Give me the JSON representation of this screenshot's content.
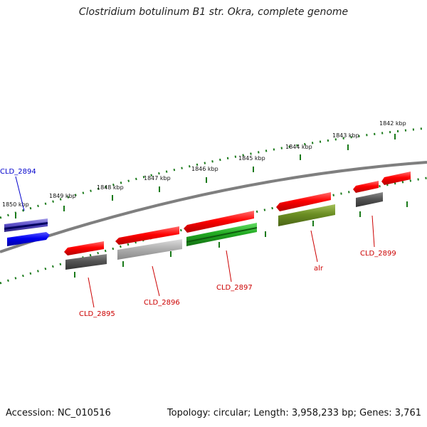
{
  "map": {
    "title": "Clostridium botulinum B1 str. Okra, complete genome",
    "accession": "Accession: NC_010516",
    "summary": "Topology: circular; Length: 3,958,233 bp; Genes: 3,761",
    "tick_labels": [
      "1842 kbp",
      "1843 kbp",
      "1844 kbp",
      "1845 kbp",
      "1846 kbp",
      "1847 kbp",
      "1848 kbp",
      "1849 kbp",
      "1850 kbp"
    ],
    "gene_labels": [
      {
        "text": "CLD_2894",
        "color": "#0000cc"
      },
      {
        "text": "CLD_2895",
        "color": "#cc0000"
      },
      {
        "text": "CLD_2896",
        "color": "#cc0000"
      },
      {
        "text": "CLD_2897",
        "color": "#cc0000"
      },
      {
        "text": "alr",
        "color": "#cc0000"
      },
      {
        "text": "CLD_2899",
        "color": "#cc0000"
      }
    ],
    "colors": {
      "backbone": "#808080",
      "tick": "#1a7a1a",
      "gene_red": "#ee0000",
      "gene_blue": "#0000ee",
      "gene_dark_gray": "#555555",
      "gene_light_gray": "#aaaaaa",
      "gene_green": "#22bb22",
      "gene_olive": "#6b8e23",
      "gene_purple": "#6a5acd"
    }
  }
}
